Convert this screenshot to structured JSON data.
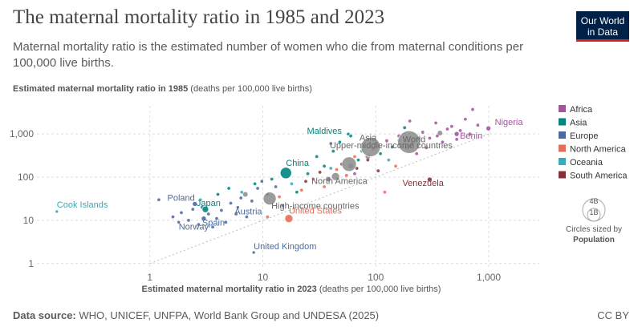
{
  "header": {
    "title": "The maternal mortality ratio in 1985 and 2023",
    "subtitle": "Maternal mortality ratio is the estimated number of women who die from maternal conditions per 100,000 live births.",
    "logo_line1": "Our World",
    "logo_line2": "in Data"
  },
  "footer": {
    "source_label": "Data source:",
    "source_text": "WHO, UNICEF, UNFPA, World Bank Group and UNDESA (2025)",
    "license": "CC BY"
  },
  "chart_data": {
    "type": "scatter",
    "title": "The maternal mortality ratio in 1985 and 2023",
    "subtitle": "Maternal mortality ratio is the estimated number of women who die from maternal conditions per 100,000 live births.",
    "xlabel_bold": "Estimated maternal mortality ratio in 2023",
    "xlabel_rest": " (deaths per 100,000 live births)",
    "ylabel_bold": "Estimated maternal mortality ratio in 1985",
    "ylabel_rest": " (deaths per 100,000 live births)",
    "x_scale": "log",
    "y_scale": "log",
    "xlim": [
      0.1,
      2800
    ],
    "ylim": [
      0.8,
      4500
    ],
    "x_ticks": [
      1,
      10,
      100,
      1000
    ],
    "x_tick_labels": [
      "1",
      "10",
      "100",
      "1,000"
    ],
    "y_ticks": [
      1,
      10,
      100,
      1000
    ],
    "y_tick_labels": [
      "1",
      "10",
      "100",
      "1,000"
    ],
    "reference_line": "y = x",
    "legend": {
      "entries": [
        {
          "name": "Africa",
          "color": "#a2559c"
        },
        {
          "name": "Asia",
          "color": "#00847e"
        },
        {
          "name": "Europe",
          "color": "#4c6a9c"
        },
        {
          "name": "North America",
          "color": "#e56e5a"
        },
        {
          "name": "Oceania",
          "color": "#38aaba"
        },
        {
          "name": "South America",
          "color": "#883039"
        }
      ],
      "size_legend_title": "Circles sized by",
      "size_legend_variable": "Population",
      "size_legend_large": "4B",
      "size_legend_small": "1B"
    },
    "labeled_points": [
      {
        "name": "Nigeria",
        "x": 993,
        "y": 1350,
        "region": "Africa",
        "size": 3
      },
      {
        "name": "Benin",
        "x": 520,
        "y": 1000,
        "region": "Africa",
        "size": 3
      },
      {
        "name": "World",
        "x": 197,
        "y": 650,
        "region": "Aggregate",
        "size": 14
      },
      {
        "name": "Asia",
        "x": 90,
        "y": 500,
        "region": "Aggregate",
        "size": 12
      },
      {
        "name": "Maldives",
        "x": 57,
        "y": 1000,
        "region": "Asia",
        "size": 2
      },
      {
        "name": "Upper-middle-income countries",
        "x": 58,
        "y": 200,
        "region": "Aggregate",
        "size": 9
      },
      {
        "name": "China",
        "x": 16,
        "y": 125,
        "region": "Asia",
        "size": 7
      },
      {
        "name": "North America",
        "x": 44,
        "y": 103,
        "region": "Aggregate",
        "size": 5
      },
      {
        "name": "Venezuela",
        "x": 300,
        "y": 88,
        "region": "South America",
        "size": 3
      },
      {
        "name": "High-income countries",
        "x": 11.5,
        "y": 32,
        "region": "Aggregate",
        "size": 8
      },
      {
        "name": "Poland",
        "x": 2.5,
        "y": 24,
        "region": "Europe",
        "size": 3
      },
      {
        "name": "Japan",
        "x": 3.1,
        "y": 18,
        "region": "Asia",
        "size": 4
      },
      {
        "name": "Austria",
        "x": 6,
        "y": 20,
        "region": "Europe",
        "size": 2
      },
      {
        "name": "Cook Islands",
        "x": 0.15,
        "y": 16,
        "region": "Oceania",
        "size": 2
      },
      {
        "name": "Norway",
        "x": 1.8,
        "y": 9,
        "region": "Europe",
        "size": 2
      },
      {
        "name": "Spain",
        "x": 3,
        "y": 11,
        "region": "Europe",
        "size": 3
      },
      {
        "name": "United States",
        "x": 17,
        "y": 11,
        "region": "North America",
        "size": 5
      },
      {
        "name": "United Kingdom",
        "x": 8.3,
        "y": 1.8,
        "region": "Europe",
        "size": 2
      }
    ],
    "background_points": [
      {
        "x": 1.2,
        "y": 30,
        "region": "Europe"
      },
      {
        "x": 1.6,
        "y": 12,
        "region": "Europe"
      },
      {
        "x": 1.9,
        "y": 15,
        "region": "Europe"
      },
      {
        "x": 2.2,
        "y": 10,
        "region": "Europe"
      },
      {
        "x": 2.4,
        "y": 18,
        "region": "Europe"
      },
      {
        "x": 2.7,
        "y": 8,
        "region": "Europe"
      },
      {
        "x": 2.9,
        "y": 20,
        "region": "Europe"
      },
      {
        "x": 3.3,
        "y": 14,
        "region": "Europe"
      },
      {
        "x": 3.6,
        "y": 7,
        "region": "Europe"
      },
      {
        "x": 3.9,
        "y": 11,
        "region": "Europe"
      },
      {
        "x": 4.3,
        "y": 17,
        "region": "Europe"
      },
      {
        "x": 4.7,
        "y": 9,
        "region": "Europe"
      },
      {
        "x": 5.2,
        "y": 25,
        "region": "Europe"
      },
      {
        "x": 5.8,
        "y": 14,
        "region": "Europe"
      },
      {
        "x": 6.4,
        "y": 33,
        "region": "Europe"
      },
      {
        "x": 7.2,
        "y": 12,
        "region": "Europe"
      },
      {
        "x": 8.0,
        "y": 28,
        "region": "Europe"
      },
      {
        "x": 9.0,
        "y": 55,
        "region": "Europe"
      },
      {
        "x": 9.8,
        "y": 80,
        "region": "Europe"
      },
      {
        "x": 11,
        "y": 40,
        "region": "Europe"
      },
      {
        "x": 13,
        "y": 60,
        "region": "Europe"
      },
      {
        "x": 15,
        "y": 22,
        "region": "Europe"
      },
      {
        "x": 4.0,
        "y": 40,
        "region": "Asia"
      },
      {
        "x": 5.0,
        "y": 55,
        "region": "Asia"
      },
      {
        "x": 8.5,
        "y": 70,
        "region": "Asia"
      },
      {
        "x": 12,
        "y": 90,
        "region": "Asia"
      },
      {
        "x": 20,
        "y": 45,
        "region": "Asia"
      },
      {
        "x": 25,
        "y": 120,
        "region": "Asia"
      },
      {
        "x": 30,
        "y": 300,
        "region": "Asia"
      },
      {
        "x": 35,
        "y": 180,
        "region": "Asia"
      },
      {
        "x": 42,
        "y": 400,
        "region": "Asia"
      },
      {
        "x": 48,
        "y": 650,
        "region": "Asia"
      },
      {
        "x": 60,
        "y": 900,
        "region": "Asia"
      },
      {
        "x": 70,
        "y": 250,
        "region": "Asia"
      },
      {
        "x": 110,
        "y": 350,
        "region": "Asia"
      },
      {
        "x": 140,
        "y": 500,
        "region": "Asia"
      },
      {
        "x": 180,
        "y": 1400,
        "region": "Asia"
      },
      {
        "x": 240,
        "y": 800,
        "region": "Asia"
      },
      {
        "x": 2.8,
        "y": 30,
        "region": "Oceania"
      },
      {
        "x": 6.5,
        "y": 45,
        "region": "Oceania"
      },
      {
        "x": 18,
        "y": 70,
        "region": "Oceania"
      },
      {
        "x": 40,
        "y": 160,
        "region": "Oceania"
      },
      {
        "x": 75,
        "y": 400,
        "region": "Oceania"
      },
      {
        "x": 130,
        "y": 250,
        "region": "Oceania"
      },
      {
        "x": 160,
        "y": 700,
        "region": "Oceania"
      },
      {
        "x": 11,
        "y": 12,
        "region": "North America"
      },
      {
        "x": 14,
        "y": 35,
        "region": "North America"
      },
      {
        "x": 22,
        "y": 50,
        "region": "North America"
      },
      {
        "x": 28,
        "y": 90,
        "region": "North America"
      },
      {
        "x": 35,
        "y": 60,
        "region": "North America"
      },
      {
        "x": 45,
        "y": 150,
        "region": "North America"
      },
      {
        "x": 55,
        "y": 110,
        "region": "North America"
      },
      {
        "x": 65,
        "y": 300,
        "region": "North America"
      },
      {
        "x": 120,
        "y": 45,
        "region": "North America"
      },
      {
        "x": 150,
        "y": 180,
        "region": "North America"
      },
      {
        "x": 24,
        "y": 80,
        "region": "South America"
      },
      {
        "x": 32,
        "y": 130,
        "region": "South America"
      },
      {
        "x": 50,
        "y": 200,
        "region": "South America"
      },
      {
        "x": 68,
        "y": 160,
        "region": "South America"
      },
      {
        "x": 85,
        "y": 250,
        "region": "South America"
      },
      {
        "x": 105,
        "y": 140,
        "region": "South America"
      },
      {
        "x": 40,
        "y": 600,
        "region": "Africa"
      },
      {
        "x": 65,
        "y": 120,
        "region": "Africa"
      },
      {
        "x": 95,
        "y": 450,
        "region": "Africa"
      },
      {
        "x": 125,
        "y": 700,
        "region": "Africa"
      },
      {
        "x": 160,
        "y": 900,
        "region": "Africa"
      },
      {
        "x": 210,
        "y": 600,
        "region": "Africa"
      },
      {
        "x": 260,
        "y": 1100,
        "region": "Africa"
      },
      {
        "x": 300,
        "y": 800,
        "region": "Africa"
      },
      {
        "x": 340,
        "y": 1800,
        "region": "Africa"
      },
      {
        "x": 390,
        "y": 650,
        "region": "Africa"
      },
      {
        "x": 430,
        "y": 1300,
        "region": "Africa"
      },
      {
        "x": 470,
        "y": 1500,
        "region": "Africa"
      },
      {
        "x": 520,
        "y": 750,
        "region": "Africa"
      },
      {
        "x": 560,
        "y": 1200,
        "region": "Africa"
      },
      {
        "x": 620,
        "y": 2200,
        "region": "Africa"
      },
      {
        "x": 680,
        "y": 1000,
        "region": "Africa"
      },
      {
        "x": 720,
        "y": 3700,
        "region": "Africa"
      },
      {
        "x": 800,
        "y": 1600,
        "region": "Africa"
      },
      {
        "x": 230,
        "y": 350,
        "region": "Africa"
      },
      {
        "x": 280,
        "y": 480,
        "region": "Africa"
      },
      {
        "x": 350,
        "y": 900,
        "region": "Africa"
      },
      {
        "x": 200,
        "y": 2000,
        "region": "Africa"
      },
      {
        "x": 60,
        "y": 180,
        "region": "Aggregate"
      },
      {
        "x": 85,
        "y": 300,
        "region": "Aggregate"
      },
      {
        "x": 190,
        "y": 500,
        "region": "Aggregate"
      },
      {
        "x": 7,
        "y": 40,
        "region": "Aggregate"
      },
      {
        "x": 38,
        "y": 90,
        "region": "Aggregate"
      },
      {
        "x": 370,
        "y": 1050,
        "region": "Aggregate"
      }
    ]
  }
}
